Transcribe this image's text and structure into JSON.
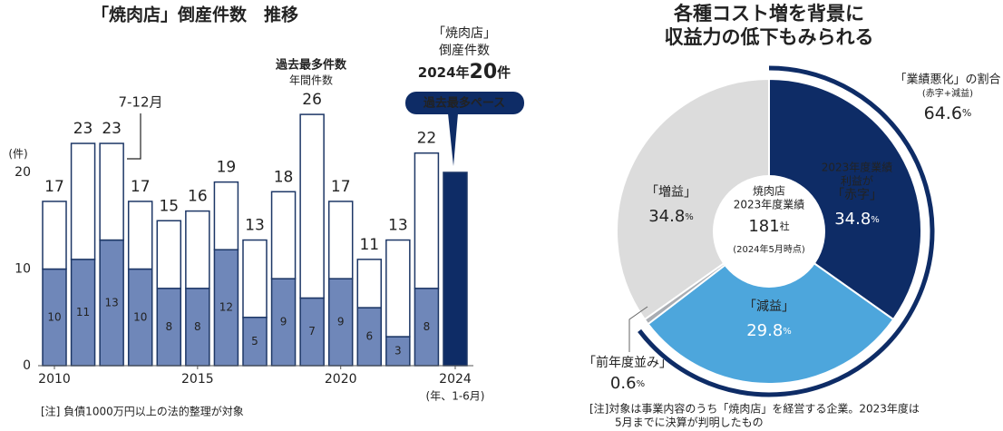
{
  "chart_data": [
    {
      "type": "bar",
      "stacked": true,
      "title": "「焼肉店」倒産件数　推移",
      "x": [
        2010,
        2011,
        2012,
        2013,
        2014,
        2015,
        2016,
        2017,
        2018,
        2019,
        2020,
        2021,
        2022,
        2023,
        2024
      ],
      "xticks": [
        2010,
        2015,
        2020,
        2024
      ],
      "x_unit": "(年、1-6月)",
      "ylim": [
        0,
        28
      ],
      "yticks": [
        0,
        10,
        20
      ],
      "y_unit": "(件)",
      "series": [
        {
          "color": "#6f87b9",
          "values": [
            10,
            11,
            13,
            10,
            8,
            8,
            12,
            5,
            9,
            7,
            9,
            6,
            3,
            8,
            null
          ]
        },
        {
          "name": "7-12月",
          "color": "#ffffff",
          "values": [
            7,
            12,
            10,
            7,
            7,
            8,
            7,
            8,
            9,
            19,
            8,
            5,
            10,
            14,
            null
          ]
        },
        {
          "color": "#0e2c66",
          "values": [
            null,
            null,
            null,
            null,
            null,
            null,
            null,
            null,
            null,
            null,
            null,
            null,
            null,
            null,
            20
          ]
        }
      ],
      "totals": [
        17,
        23,
        23,
        17,
        15,
        16,
        19,
        13,
        18,
        26,
        17,
        11,
        13,
        22,
        null
      ],
      "annotations": {
        "record_label": "過去最多件数",
        "record_sub": "年間件数",
        "callout_lines": [
          "「焼肉店」",
          "倒産件数"
        ],
        "callout_year": "2024年",
        "callout_value": 20,
        "callout_unit": "件",
        "badge": "過去最多ペース"
      },
      "note": "[注]  負債1000万円以上の法的整理が対象"
    },
    {
      "type": "pie",
      "title_lines": [
        "各種コスト増を背景に",
        "収益力の低下もみられる"
      ],
      "labels": [
        [
          "2023年度業績",
          "利益が",
          "「赤字」"
        ],
        [
          "「減益」"
        ],
        [
          "「前年度並み」"
        ],
        [
          "「増益」"
        ]
      ],
      "values": [
        34.8,
        29.8,
        0.6,
        34.8
      ],
      "unit": "%",
      "colors": [
        "#0e2c66",
        "#4da6dc",
        "#a9adb3",
        "#dcdcdc"
      ],
      "center": {
        "lines": [
          "焼肉店",
          "2023年度業績"
        ],
        "value": 181,
        "value_unit": "社",
        "note": "(2024年5月時点)"
      },
      "outer_arc": {
        "label": "「業績悪化」の割合",
        "sub": "(赤字+減益)",
        "value": 64.6
      },
      "note_lines": [
        "[注]対象は事業内容のうち「焼肉店」を経営する企業。2023年度は",
        "5月までに決算が判明したもの"
      ]
    }
  ]
}
